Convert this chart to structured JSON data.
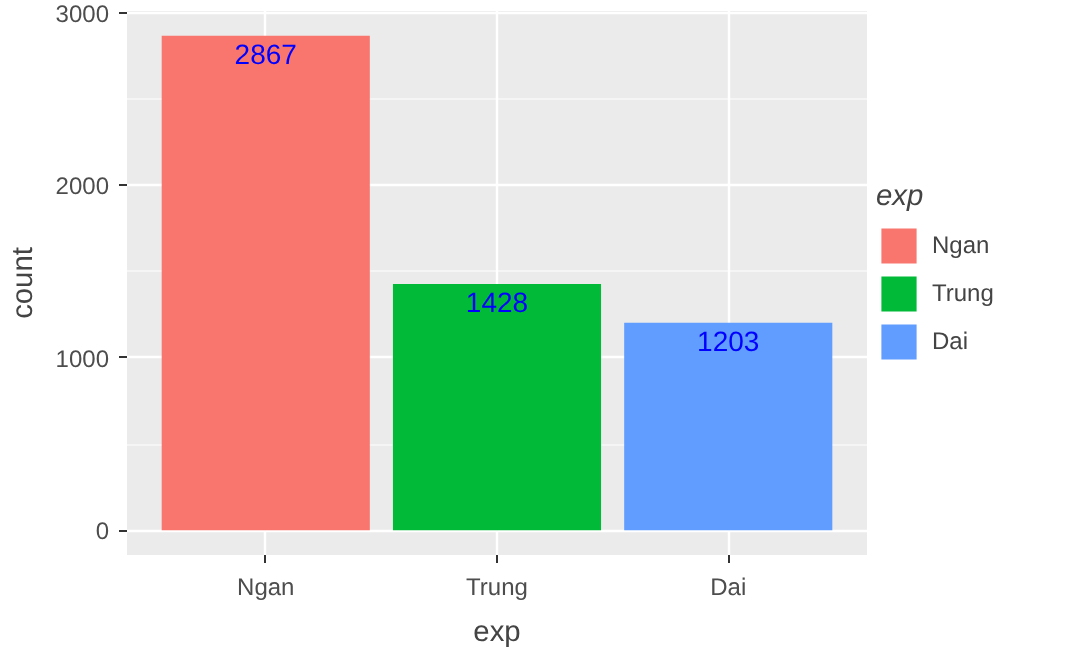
{
  "chart_data": {
    "type": "bar",
    "xlabel": "exp",
    "ylabel": "count",
    "legend_title": "exp",
    "categories": [
      "Ngan",
      "Trung",
      "Dai"
    ],
    "series": [
      {
        "name": "Ngan",
        "color": "#f8766d",
        "values": [
          2867,
          null,
          null
        ]
      },
      {
        "name": "Trung",
        "color": "#00ba38",
        "values": [
          null,
          1428,
          null
        ]
      },
      {
        "name": "Dai",
        "color": "#619cff",
        "values": [
          null,
          null,
          1203
        ]
      }
    ],
    "ylim": [
      -143,
      3010
    ],
    "yticks": [
      0,
      1000,
      2000,
      3000
    ],
    "grid": true,
    "legend": "right",
    "data_labels": true
  }
}
